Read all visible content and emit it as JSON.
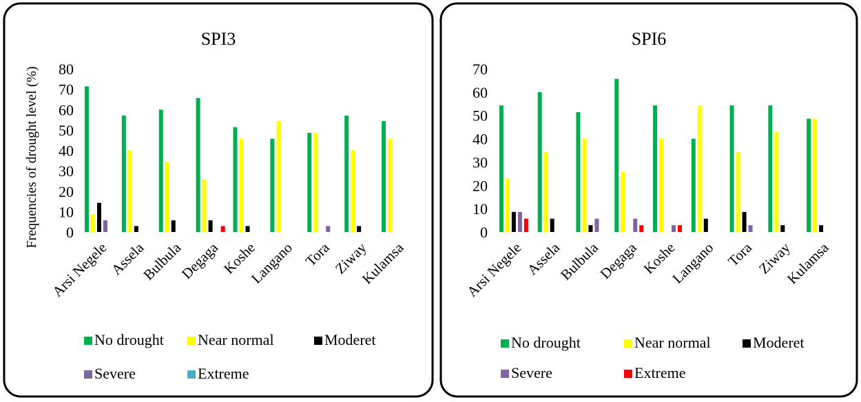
{
  "chart_data": [
    {
      "type": "bar",
      "title": "SPI3",
      "ylabel": "Frequencies of drought level (%)",
      "xlabel": "",
      "ylim": [
        0,
        80
      ],
      "yticks": [
        0,
        10,
        20,
        30,
        40,
        50,
        60,
        70,
        80
      ],
      "grid": false,
      "legend_position": "bottom",
      "categories": [
        "Arsi Negele",
        "Assela",
        "Bulbula",
        "Degaga",
        "Koshe",
        "Langano",
        "Tora",
        "Ziway",
        "Kulamsa"
      ],
      "series": [
        {
          "name": "No drought",
          "color": "#00b050",
          "values": [
            71.4,
            57.1,
            60.0,
            65.7,
            51.4,
            45.7,
            48.6,
            57.1,
            54.3
          ]
        },
        {
          "name": "Near normal",
          "color": "#ffff00",
          "values": [
            8.6,
            40.0,
            34.3,
            25.7,
            45.7,
            54.3,
            48.6,
            40.0,
            45.7
          ]
        },
        {
          "name": "Moderet",
          "color": "#000000",
          "values": [
            14.3,
            2.9,
            5.7,
            5.7,
            2.9,
            0,
            0,
            2.9,
            0
          ]
        },
        {
          "name": "Severe",
          "color": "#8064a2",
          "values": [
            5.7,
            0,
            0,
            0,
            0,
            0,
            2.9,
            0,
            0
          ]
        },
        {
          "name": "Extreme",
          "color": "#4bacc6",
          "values": [
            0,
            0,
            0,
            0,
            0,
            0,
            0,
            0,
            0
          ]
        }
      ],
      "extra_marks": [
        {
          "category": "Degaga",
          "color": "#ff0000",
          "value": 2.9
        }
      ]
    },
    {
      "type": "bar",
      "title": "SPI6",
      "ylabel": "",
      "xlabel": "",
      "ylim": [
        0,
        70
      ],
      "yticks": [
        0,
        10,
        20,
        30,
        40,
        50,
        60,
        70
      ],
      "grid": false,
      "legend_position": "bottom",
      "categories": [
        "Arsi Negele",
        "Assela",
        "Bulbula",
        "Degaga",
        "Koshe",
        "Langano",
        "Tora",
        "Ziway",
        "Kulamsa"
      ],
      "series": [
        {
          "name": "No drought",
          "color": "#00b050",
          "values": [
            54.3,
            60.0,
            51.4,
            65.7,
            54.3,
            40.0,
            54.3,
            54.3,
            48.6
          ]
        },
        {
          "name": "Near normal",
          "color": "#ffff00",
          "values": [
            22.9,
            34.3,
            40.0,
            25.7,
            40.0,
            54.3,
            34.3,
            42.9,
            48.6
          ]
        },
        {
          "name": "Moderet",
          "color": "#000000",
          "values": [
            8.6,
            5.7,
            2.9,
            0,
            0,
            5.7,
            8.6,
            2.9,
            2.9
          ]
        },
        {
          "name": "Severe",
          "color": "#8064a2",
          "values": [
            8.6,
            0,
            5.7,
            5.7,
            2.9,
            0,
            2.9,
            0,
            0
          ]
        },
        {
          "name": "Extreme",
          "color": "#ff0000",
          "values": [
            5.7,
            0,
            0,
            2.9,
            2.9,
            0,
            0,
            0,
            0
          ]
        }
      ]
    }
  ]
}
